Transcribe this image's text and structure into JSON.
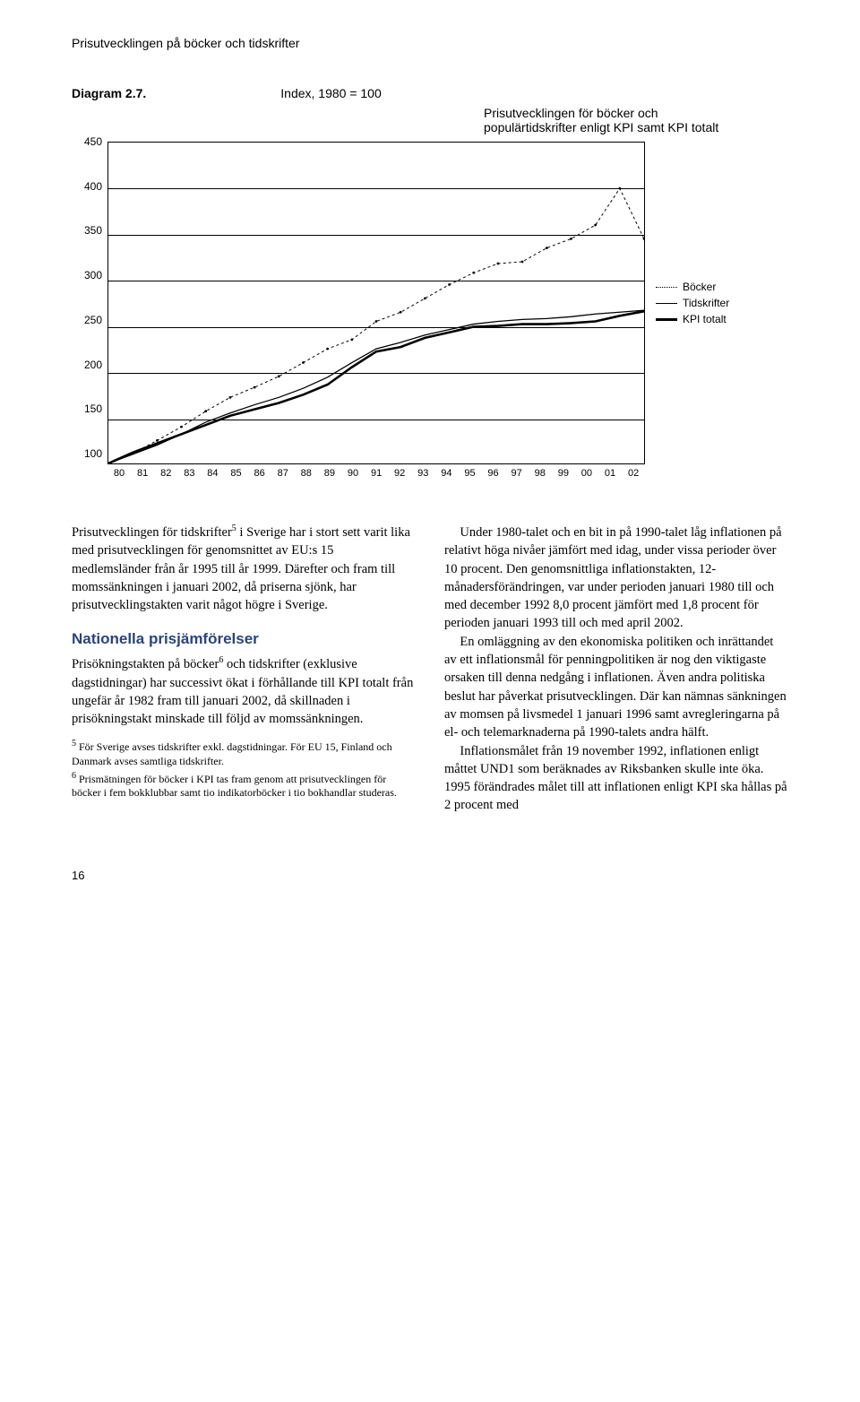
{
  "runningHead": "Prisutvecklingen på böcker och tidskrifter",
  "diagram": {
    "number": "Diagram 2.7.",
    "indexLabel": "Index, 1980 = 100",
    "subtitle": "Prisutvecklingen för böcker och populärtidskrifter enligt KPI samt KPI totalt",
    "yTicks": [
      450,
      400,
      350,
      300,
      250,
      200,
      150,
      100
    ],
    "xTicks": [
      "80",
      "81",
      "82",
      "83",
      "84",
      "85",
      "86",
      "87",
      "88",
      "89",
      "90",
      "91",
      "92",
      "93",
      "94",
      "95",
      "96",
      "97",
      "98",
      "99",
      "00",
      "01",
      "02"
    ],
    "ylim": [
      100,
      450
    ],
    "legend": {
      "bocker": "Böcker",
      "tidskrifter": "Tidskrifter",
      "kpi": "KPI totalt"
    },
    "series": {
      "bocker": [
        100,
        111,
        125,
        140,
        157,
        172,
        183,
        195,
        210,
        225,
        235,
        255,
        265,
        280,
        295,
        308,
        318,
        320,
        335,
        345,
        360,
        400,
        345
      ],
      "tidskrifter": [
        100,
        110,
        120,
        132,
        145,
        155,
        164,
        172,
        182,
        194,
        210,
        225,
        232,
        240,
        246,
        252,
        255,
        257,
        258,
        260,
        263,
        265,
        267
      ],
      "kpi": [
        100,
        112,
        122,
        132,
        142,
        152,
        159,
        166,
        175,
        186,
        205,
        222,
        227,
        237,
        243,
        249,
        250,
        252,
        252,
        253,
        255,
        261,
        266
      ]
    },
    "colors": {
      "background": "#ffffff",
      "axis": "#000000",
      "grid": "#000000",
      "text": "#000000",
      "bocker": "#000000",
      "tidskrifter": "#000000",
      "kpi": "#000000"
    },
    "strokeWidths": {
      "bocker": 1,
      "tidskrifter": 1.3,
      "kpi": 2.6
    },
    "dash": {
      "bocker": "3 3",
      "tidskrifter": "none",
      "kpi": "none"
    }
  },
  "body": {
    "left": {
      "p1": "Prisutvecklingen för tidskrifter",
      "p1_sup": "5",
      "p1_cont": " i Sverige har i stort sett varit lika med prisutvecklingen för genomsnittet av EU:s 15 medlemsländer från år 1995 till år 1999. Därefter och fram till momssänkningen i januari 2002, då priserna sjönk, har prisutvecklingstakten varit något högre i Sverige.",
      "h3": "Nationella prisjämförelser",
      "p2a": "Prisökningstakten på böcker",
      "p2_sup": "6",
      "p2b": " och tidskrifter (exklusive dagstidningar) har successivt ökat i förhållande till KPI totalt från ungefär år 1982 fram till januari 2002, då skillnaden i prisökningstakt minskade till följd av momssänkningen.",
      "fn5": "För Sverige avses tidskrifter exkl. dagstidningar. För EU 15, Finland och Danmark avses samtliga tidskrifter.",
      "fn6": "Prismätningen för böcker i KPI tas fram genom att prisutvecklingen för böcker i fem bokklubbar samt tio indikatorböcker i tio bokhandlar studeras."
    },
    "right": {
      "p1": "Under 1980-talet och en bit in på 1990-talet låg inflationen på relativt höga nivåer jämfört med idag, under vissa perioder över 10 procent. Den genomsnittliga inflationstakten, 12-månadersförändringen, var under perioden januari 1980 till och med december 1992 8,0 procent jämfört med 1,8 procent för perioden januari 1993 till och med april 2002.",
      "p2": "En omläggning av den ekonomiska politiken och inrättandet av ett inflationsmål för penningpolitiken är nog den viktigaste orsaken till denna nedgång i inflationen. Även andra politiska beslut har påverkat prisutvecklingen. Där kan nämnas sänkningen av momsen på livsmedel 1 januari 1996 samt avregleringarna på el- och telemarknaderna på 1990-talets andra hälft.",
      "p3": "Inflationsmålet från 19 november 1992, inflationen enligt måttet UND1 som beräknades av Riksbanken skulle inte öka. 1995 förändrades målet till att inflationen enligt KPI ska hållas på 2 procent med"
    }
  },
  "pageNumber": "16"
}
